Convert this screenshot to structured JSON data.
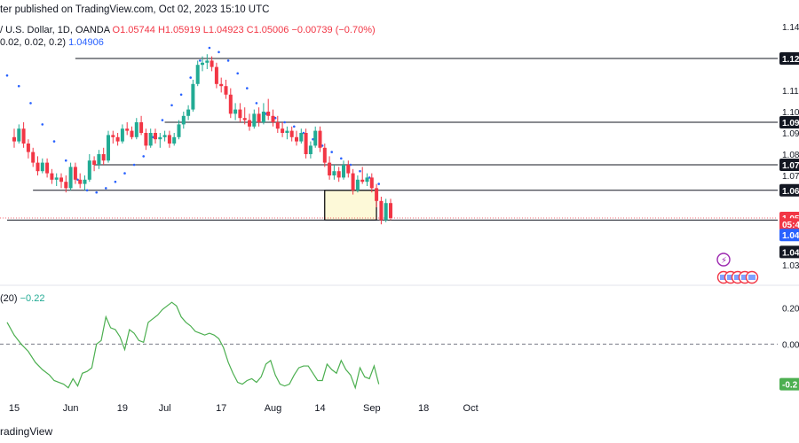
{
  "header": {
    "published": "ter published on TradingView.com, Oct 02, 2023 15:10 UTC",
    "symbol": "/ U.S. Dollar, 1D, OANDA",
    "open": "O1.05744",
    "high": "H1.05919",
    "low": "L1.04923",
    "close": "C1.05006",
    "change": "−0.00739 (−0.70%)",
    "sar_params": "0.02, 0.02, 0.2)",
    "sar_value": "1.04906"
  },
  "indicator": {
    "name": "(20)",
    "value": "−0.22"
  },
  "footer": {
    "brand": "radingView"
  },
  "colors": {
    "up": "#22ab94",
    "down": "#f23645",
    "sar": "#2962ff",
    "indicator": "#4caf50",
    "zone_fill": "#fdf9d8"
  },
  "price_axis_labels": [
    {
      "text": "1.14",
      "y": 1.14
    },
    {
      "text": "1.12",
      "y": 1.125,
      "boxed": true
    },
    {
      "text": "1.11",
      "y": 1.11
    },
    {
      "text": "1.10",
      "y": 1.1
    },
    {
      "text": "1.09",
      "y": 1.095,
      "boxed": true
    },
    {
      "text": "1.09",
      "y": 1.09
    },
    {
      "text": "1.08",
      "y": 1.08
    },
    {
      "text": "1.07",
      "y": 1.075,
      "boxed": true
    },
    {
      "text": "1.07",
      "y": 1.07
    },
    {
      "text": "1.06",
      "y": 1.063,
      "boxed": true
    },
    {
      "text": "1.05",
      "y": 1.05,
      "current": true
    },
    {
      "text": "05:4",
      "y": 1.047,
      "current": true
    },
    {
      "text": "1.04",
      "y": 1.042,
      "sar": true
    },
    {
      "text": "1.04",
      "y": 1.034,
      "boxed": true
    },
    {
      "text": "1.03",
      "y": 1.028
    }
  ],
  "indicator_axis_labels": [
    {
      "text": "0.20",
      "y": 0.2
    },
    {
      "text": "0.00",
      "y": 0.0
    },
    {
      "text": "-0.2",
      "y": -0.22,
      "current": true
    }
  ],
  "chart_data": {
    "type": "candlestick",
    "instrument": "/ U.S. Dollar, 1D, OANDA",
    "x_ticks": [
      {
        "label": "15",
        "bar": 0
      },
      {
        "label": "Jun",
        "bar": 12
      },
      {
        "label": "19",
        "bar": 23
      },
      {
        "label": "Jul",
        "bar": 32
      },
      {
        "label": "17",
        "bar": 44
      },
      {
        "label": "Aug",
        "bar": 55
      },
      {
        "label": "14",
        "bar": 65
      },
      {
        "label": "Sep",
        "bar": 76
      },
      {
        "label": "18",
        "bar": 87
      },
      {
        "label": "Oct",
        "bar": 97
      }
    ],
    "ylim": [
      1.025,
      1.145
    ],
    "ohlc": [
      [
        1.088,
        1.092,
        1.083,
        1.086
      ],
      [
        1.086,
        1.094,
        1.085,
        1.092
      ],
      [
        1.092,
        1.095,
        1.083,
        1.085
      ],
      [
        1.085,
        1.087,
        1.078,
        1.081
      ],
      [
        1.081,
        1.083,
        1.074,
        1.076
      ],
      [
        1.076,
        1.079,
        1.07,
        1.072
      ],
      [
        1.072,
        1.078,
        1.071,
        1.076
      ],
      [
        1.076,
        1.078,
        1.069,
        1.071
      ],
      [
        1.071,
        1.073,
        1.066,
        1.068
      ],
      [
        1.068,
        1.071,
        1.065,
        1.069
      ],
      [
        1.069,
        1.071,
        1.064,
        1.067
      ],
      [
        1.067,
        1.07,
        1.062,
        1.064
      ],
      [
        1.064,
        1.076,
        1.063,
        1.074
      ],
      [
        1.074,
        1.076,
        1.066,
        1.068
      ],
      [
        1.068,
        1.071,
        1.064,
        1.066
      ],
      [
        1.066,
        1.07,
        1.063,
        1.068
      ],
      [
        1.068,
        1.08,
        1.067,
        1.077
      ],
      [
        1.077,
        1.079,
        1.072,
        1.075
      ],
      [
        1.075,
        1.082,
        1.073,
        1.08
      ],
      [
        1.08,
        1.083,
        1.075,
        1.077
      ],
      [
        1.077,
        1.091,
        1.076,
        1.089
      ],
      [
        1.089,
        1.091,
        1.085,
        1.088
      ],
      [
        1.088,
        1.09,
        1.084,
        1.086
      ],
      [
        1.086,
        1.094,
        1.085,
        1.092
      ],
      [
        1.092,
        1.095,
        1.089,
        1.091
      ],
      [
        1.091,
        1.093,
        1.087,
        1.088
      ],
      [
        1.088,
        1.097,
        1.087,
        1.095
      ],
      [
        1.095,
        1.098,
        1.089,
        1.09
      ],
      [
        1.09,
        1.092,
        1.082,
        1.084
      ],
      [
        1.084,
        1.092,
        1.083,
        1.09
      ],
      [
        1.09,
        1.092,
        1.085,
        1.087
      ],
      [
        1.087,
        1.09,
        1.083,
        1.088
      ],
      [
        1.088,
        1.091,
        1.086,
        1.089
      ],
      [
        1.089,
        1.091,
        1.083,
        1.085
      ],
      [
        1.085,
        1.09,
        1.084,
        1.088
      ],
      [
        1.088,
        1.096,
        1.087,
        1.094
      ],
      [
        1.094,
        1.1,
        1.092,
        1.098
      ],
      [
        1.098,
        1.103,
        1.096,
        1.101
      ],
      [
        1.101,
        1.115,
        1.1,
        1.113
      ],
      [
        1.113,
        1.124,
        1.112,
        1.122
      ],
      [
        1.122,
        1.126,
        1.119,
        1.123
      ],
      [
        1.123,
        1.127,
        1.12,
        1.124
      ],
      [
        1.124,
        1.126,
        1.119,
        1.121
      ],
      [
        1.121,
        1.123,
        1.111,
        1.113
      ],
      [
        1.113,
        1.116,
        1.109,
        1.112
      ],
      [
        1.112,
        1.115,
        1.106,
        1.108
      ],
      [
        1.108,
        1.111,
        1.097,
        1.099
      ],
      [
        1.099,
        1.104,
        1.096,
        1.101
      ],
      [
        1.101,
        1.104,
        1.095,
        1.097
      ],
      [
        1.097,
        1.102,
        1.094,
        1.096
      ],
      [
        1.096,
        1.099,
        1.091,
        1.093
      ],
      [
        1.093,
        1.101,
        1.092,
        1.099
      ],
      [
        1.099,
        1.102,
        1.093,
        1.095
      ],
      [
        1.095,
        1.104,
        1.094,
        1.1
      ],
      [
        1.1,
        1.106,
        1.096,
        1.098
      ],
      [
        1.098,
        1.101,
        1.093,
        1.095
      ],
      [
        1.095,
        1.098,
        1.09,
        1.092
      ],
      [
        1.092,
        1.095,
        1.088,
        1.09
      ],
      [
        1.09,
        1.093,
        1.087,
        1.091
      ],
      [
        1.091,
        1.093,
        1.086,
        1.088
      ],
      [
        1.088,
        1.091,
        1.084,
        1.086
      ],
      [
        1.086,
        1.092,
        1.085,
        1.09
      ],
      [
        1.09,
        1.092,
        1.078,
        1.08
      ],
      [
        1.08,
        1.086,
        1.078,
        1.084
      ],
      [
        1.084,
        1.093,
        1.083,
        1.091
      ],
      [
        1.091,
        1.093,
        1.081,
        1.083
      ],
      [
        1.083,
        1.085,
        1.074,
        1.076
      ],
      [
        1.076,
        1.079,
        1.068,
        1.07
      ],
      [
        1.07,
        1.075,
        1.068,
        1.072
      ],
      [
        1.072,
        1.074,
        1.067,
        1.069
      ],
      [
        1.069,
        1.077,
        1.068,
        1.075
      ],
      [
        1.075,
        1.077,
        1.069,
        1.071
      ],
      [
        1.071,
        1.073,
        1.061,
        1.063
      ],
      [
        1.063,
        1.07,
        1.062,
        1.068
      ],
      [
        1.068,
        1.074,
        1.066,
        1.067
      ],
      [
        1.067,
        1.071,
        1.065,
        1.069
      ],
      [
        1.069,
        1.071,
        1.062,
        1.064
      ],
      [
        1.064,
        1.066,
        1.055,
        1.058
      ],
      [
        1.058,
        1.06,
        1.047,
        1.049
      ],
      [
        1.049,
        1.059,
        1.048,
        1.057
      ],
      [
        1.057,
        1.059,
        1.049,
        1.05
      ]
    ],
    "sar": [
      [
        0,
        1.117
      ],
      [
        5,
        1.112
      ],
      [
        10,
        1.104
      ],
      [
        15,
        1.094
      ],
      [
        20,
        1.086
      ],
      [
        25,
        1.077
      ],
      [
        30,
        1.068
      ],
      [
        34,
        1.063
      ],
      [
        38,
        1.062
      ],
      [
        42,
        1.064
      ],
      [
        46,
        1.067
      ],
      [
        50,
        1.071
      ],
      [
        54,
        1.075
      ],
      [
        58,
        1.079
      ],
      [
        62,
        1.088
      ],
      [
        66,
        1.096
      ],
      [
        70,
        1.103
      ],
      [
        74,
        1.108
      ],
      [
        78,
        1.116
      ],
      [
        82,
        1.124
      ],
      [
        86,
        1.13
      ],
      [
        90,
        1.128
      ],
      [
        94,
        1.124
      ],
      [
        98,
        1.118
      ],
      [
        102,
        1.111
      ],
      [
        106,
        1.104
      ],
      [
        110,
        1.099
      ],
      [
        114,
        1.097
      ],
      [
        118,
        1.095
      ],
      [
        122,
        1.093
      ],
      [
        126,
        1.09
      ],
      [
        130,
        1.087
      ],
      [
        134,
        1.084
      ],
      [
        138,
        1.081
      ],
      [
        142,
        1.078
      ],
      [
        146,
        1.075
      ],
      [
        150,
        1.072
      ],
      [
        154,
        1.069
      ],
      [
        158,
        1.066
      ]
    ],
    "horizontal_levels": [
      {
        "y": 1.125,
        "bar_from": 29,
        "bar_to": 160
      },
      {
        "y": 1.095,
        "bar_from": 67,
        "bar_to": 160
      },
      {
        "y": 1.075,
        "bar_from": 37,
        "bar_to": 160
      },
      {
        "y": 1.063,
        "bar_from": 11,
        "bar_to": 160
      },
      {
        "y": 1.049,
        "bar_from": 0,
        "bar_to": 160
      }
    ],
    "zone": {
      "bar_from": 135,
      "bar_to": 157,
      "y_top": 1.063,
      "y_bottom": 1.049
    },
    "indicator": {
      "name": "(20)",
      "ylim": [
        -0.3,
        0.27
      ],
      "zero_line": 0.0,
      "values": [
        [
          0,
          0.12
        ],
        [
          3,
          0.05
        ],
        [
          6,
          0.0
        ],
        [
          9,
          -0.04
        ],
        [
          12,
          -0.1
        ],
        [
          15,
          -0.14
        ],
        [
          18,
          -0.17
        ],
        [
          20,
          -0.2
        ],
        [
          22,
          -0.21
        ],
        [
          24,
          -0.22
        ],
        [
          26,
          -0.24
        ],
        [
          28,
          -0.19
        ],
        [
          30,
          -0.23
        ],
        [
          32,
          -0.16
        ],
        [
          34,
          -0.15
        ],
        [
          36,
          -0.13
        ],
        [
          38,
          0.0
        ],
        [
          40,
          0.02
        ],
        [
          42,
          0.15
        ],
        [
          44,
          0.09
        ],
        [
          46,
          0.08
        ],
        [
          48,
          0.04
        ],
        [
          50,
          -0.03
        ],
        [
          52,
          0.08
        ],
        [
          54,
          0.06
        ],
        [
          56,
          0.02
        ],
        [
          58,
          0.01
        ],
        [
          60,
          0.12
        ],
        [
          62,
          0.14
        ],
        [
          64,
          0.16
        ],
        [
          66,
          0.19
        ],
        [
          68,
          0.21
        ],
        [
          70,
          0.23
        ],
        [
          72,
          0.21
        ],
        [
          74,
          0.15
        ],
        [
          76,
          0.12
        ],
        [
          78,
          0.1
        ],
        [
          80,
          0.07
        ],
        [
          82,
          0.06
        ],
        [
          84,
          0.05
        ],
        [
          86,
          0.06
        ],
        [
          88,
          0.05
        ],
        [
          90,
          0.03
        ],
        [
          92,
          -0.02
        ],
        [
          94,
          -0.1
        ],
        [
          96,
          -0.16
        ],
        [
          98,
          -0.21
        ],
        [
          100,
          -0.22
        ],
        [
          102,
          -0.2
        ],
        [
          104,
          -0.19
        ],
        [
          106,
          -0.21
        ],
        [
          108,
          -0.18
        ],
        [
          110,
          -0.11
        ],
        [
          112,
          -0.09
        ],
        [
          114,
          -0.17
        ],
        [
          116,
          -0.22
        ],
        [
          118,
          -0.23
        ],
        [
          120,
          -0.22
        ],
        [
          122,
          -0.17
        ],
        [
          124,
          -0.13
        ],
        [
          126,
          -0.12
        ],
        [
          128,
          -0.12
        ],
        [
          130,
          -0.16
        ],
        [
          132,
          -0.2
        ],
        [
          134,
          -0.2
        ],
        [
          136,
          -0.11
        ],
        [
          138,
          -0.14
        ],
        [
          140,
          -0.16
        ],
        [
          142,
          -0.09
        ],
        [
          144,
          -0.14
        ],
        [
          146,
          -0.17
        ],
        [
          148,
          -0.24
        ],
        [
          150,
          -0.13
        ],
        [
          152,
          -0.18
        ],
        [
          154,
          -0.19
        ],
        [
          156,
          -0.12
        ],
        [
          158,
          -0.22
        ]
      ]
    }
  }
}
